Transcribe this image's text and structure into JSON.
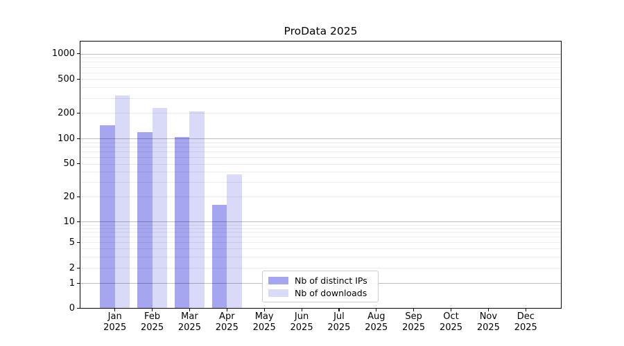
{
  "title": "ProData 2025",
  "chart_data": {
    "type": "bar",
    "title": "ProData 2025",
    "categories": [
      "Jan 2025",
      "Feb 2025",
      "Mar 2025",
      "Apr 2025",
      "May 2025",
      "Jun 2025",
      "Jul 2025",
      "Aug 2025",
      "Sep 2025",
      "Oct 2025",
      "Nov 2025",
      "Dec 2025"
    ],
    "months": [
      "Jan",
      "Feb",
      "Mar",
      "Apr",
      "May",
      "Jun",
      "Jul",
      "Aug",
      "Sep",
      "Oct",
      "Nov",
      "Dec"
    ],
    "year": "2025",
    "series": [
      {
        "name": "Nb of distinct IPs",
        "color": "#a5a5f0",
        "values": [
          145,
          118,
          105,
          16,
          0,
          0,
          0,
          0,
          0,
          0,
          0,
          0
        ]
      },
      {
        "name": "Nb of downloads",
        "color": "#d9d9f8",
        "values": [
          320,
          230,
          210,
          37,
          0,
          0,
          0,
          0,
          0,
          0,
          0,
          0
        ]
      }
    ],
    "xlabel": "",
    "ylabel": "",
    "y_scale": "symlog",
    "y_ticks": [
      0,
      1,
      2,
      5,
      10,
      20,
      50,
      100,
      200,
      500,
      1000
    ],
    "ylim": [
      0,
      1380
    ],
    "grid": true,
    "legend_position": "lower center-left"
  },
  "legend": {
    "items": [
      {
        "label": "Nb of distinct IPs"
      },
      {
        "label": "Nb of downloads"
      }
    ]
  }
}
